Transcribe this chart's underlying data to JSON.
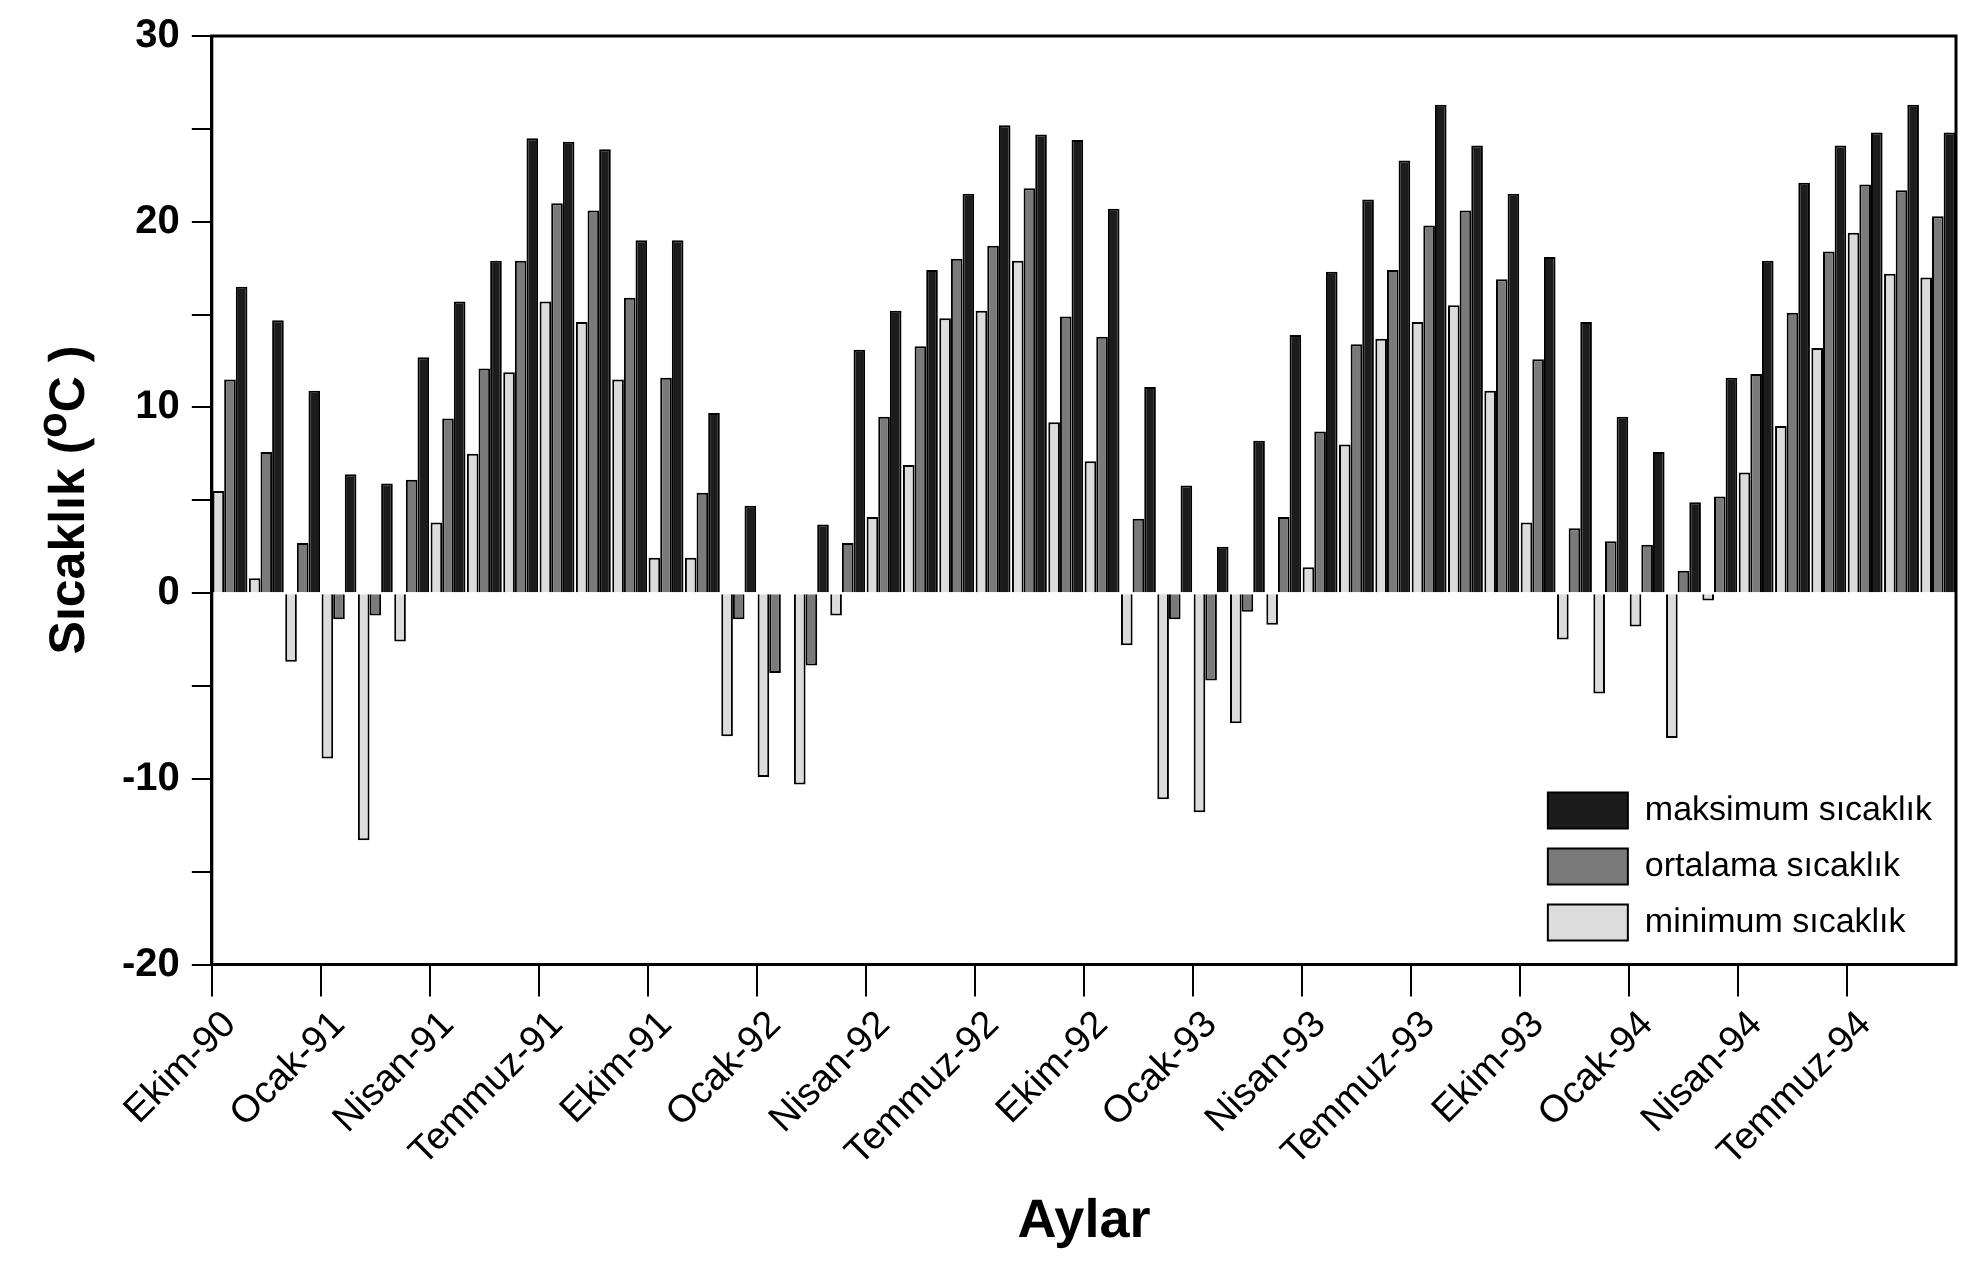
{
  "chart_data": {
    "type": "bar",
    "xlabel": "Aylar",
    "ylabel": "Sıcaklık ($^{o}$C )",
    "categories": [
      "Ekim-90",
      null,
      null,
      "Ocak-91",
      null,
      null,
      "Nisan-91",
      null,
      null,
      "Temmuz-91",
      null,
      null,
      "Ekim-91",
      null,
      null,
      "Ocak-92",
      null,
      null,
      "Nisan-92",
      null,
      null,
      "Temmuz-92",
      null,
      null,
      "Ekim-92",
      null,
      null,
      "Ocak-93",
      null,
      null,
      "Nisan-93",
      null,
      null,
      "Temmuz-93",
      null,
      null,
      "Ekim-93",
      null,
      null,
      "Ocak-94",
      null,
      null,
      "Nisan-94",
      null,
      null,
      "Temmuz-94",
      null,
      null
    ],
    "series": [
      {
        "name": "maksimum sıcaklık",
        "color": "#1c1c1c",
        "values": [
          16.5,
          14.7,
          10.9,
          6.4,
          5.9,
          12.7,
          15.7,
          17.9,
          24.5,
          24.3,
          23.9,
          19.0,
          19.0,
          9.7,
          4.7,
          0,
          3.7,
          13.1,
          15.2,
          17.4,
          21.5,
          25.2,
          24.7,
          24.4,
          20.7,
          11.1,
          5.8,
          2.5,
          8.2,
          13.9,
          17.3,
          21.2,
          23.3,
          26.3,
          24.1,
          21.5,
          18.1,
          14.6,
          9.5,
          7.6,
          4.9,
          11.6,
          17.9,
          22.1,
          24.1,
          24.8,
          26.3,
          24.8
        ]
      },
      {
        "name": "ortalama sıcaklık",
        "color": "#7a7a7a",
        "values": [
          11.5,
          7.6,
          2.7,
          -1.4,
          -1.2,
          6.1,
          9.4,
          12.1,
          17.9,
          21.0,
          20.6,
          15.9,
          11.6,
          5.4,
          -1.4,
          -4.3,
          -3.9,
          2.7,
          9.5,
          13.3,
          18.0,
          18.7,
          21.8,
          14.9,
          13.8,
          4.0,
          -1.4,
          -4.7,
          -1.0,
          4.1,
          8.7,
          13.4,
          17.4,
          19.8,
          20.6,
          16.9,
          12.6,
          3.5,
          2.8,
          2.6,
          1.2,
          5.2,
          11.8,
          15.1,
          18.4,
          22.0,
          21.7,
          20.3
        ]
      },
      {
        "name": "minimum sıcaklık",
        "color": "#dcdcdc",
        "values": [
          5.5,
          0.8,
          -3.7,
          -8.9,
          -13.3,
          -2.6,
          3.8,
          7.5,
          11.9,
          15.7,
          14.6,
          11.5,
          1.9,
          1.9,
          -7.7,
          -9.9,
          -10.3,
          -1.2,
          4.1,
          6.9,
          14.8,
          15.2,
          17.9,
          9.2,
          7.1,
          -2.8,
          -11.1,
          -11.8,
          -7.0,
          -1.7,
          1.4,
          8.0,
          13.7,
          14.6,
          15.5,
          10.9,
          3.8,
          -2.5,
          -5.4,
          -1.8,
          -7.8,
          -0.4,
          6.5,
          9.0,
          13.2,
          19.4,
          17.2,
          17.0
        ]
      }
    ],
    "ylim": [
      -20,
      30
    ],
    "yticks": [
      -20,
      {
        "value": -15,
        "label": null
      },
      -10,
      {
        "value": -5,
        "label": null
      },
      0,
      {
        "value": 5,
        "label": null
      },
      10,
      {
        "value": 15,
        "label": null
      },
      20,
      {
        "value": 25,
        "label": null
      },
      30
    ],
    "grid": false,
    "legend": "bottom right"
  }
}
